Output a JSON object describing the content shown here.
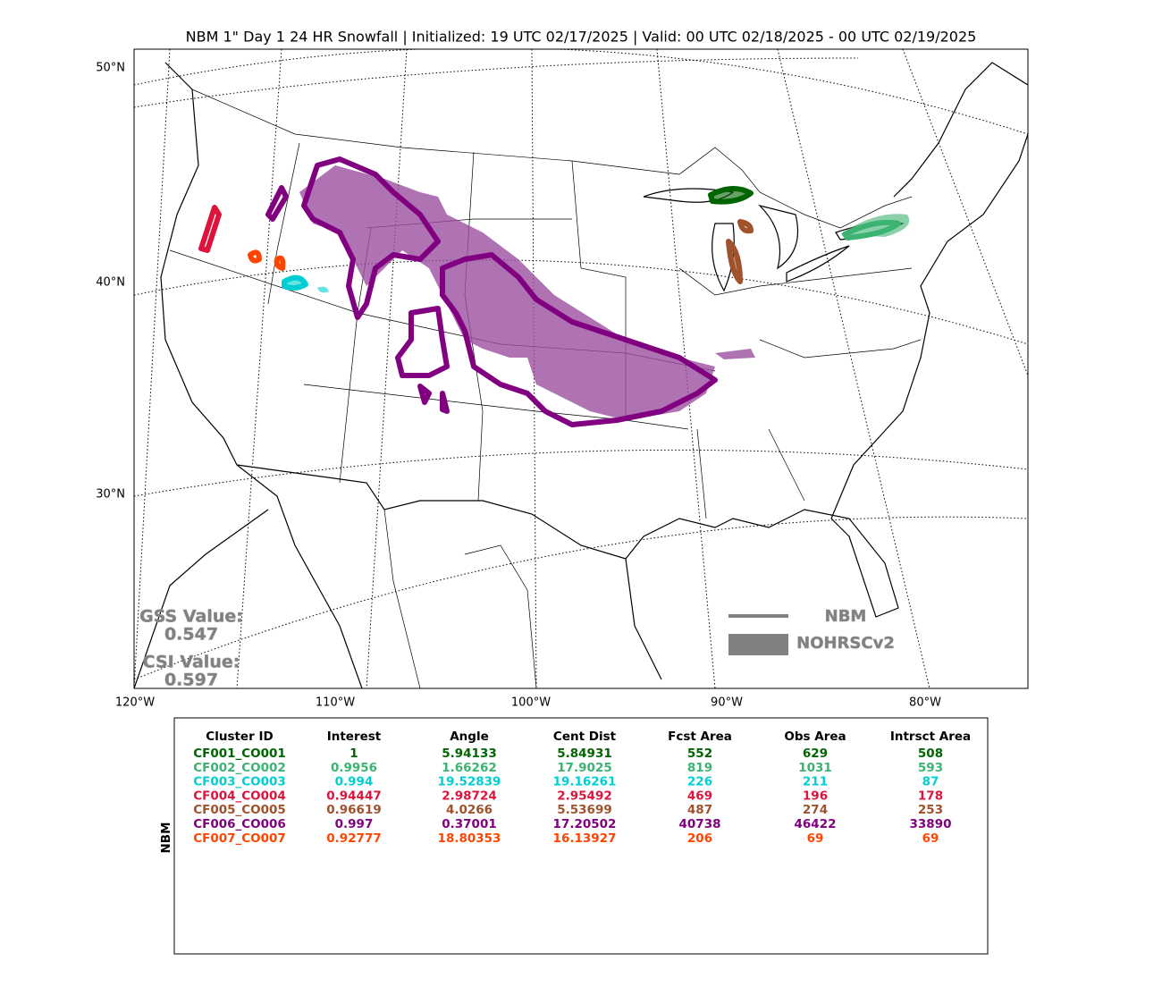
{
  "title": "NBM 1\" Day 1 24 HR Snowfall | Initialized: 19 UTC 02/17/2025 | Valid: 00 UTC 02/18/2025 - 00 UTC 02/19/2025",
  "map": {
    "lat_labels": [
      "50°N",
      "40°N",
      "30°N"
    ],
    "lon_labels": [
      "120°W",
      "110°W",
      "100°W",
      "90°W",
      "80°W"
    ],
    "scores": {
      "gss_label": "GSS Value:",
      "gss_value": "0.547",
      "csi_label": "CSI Value:",
      "csi_value": "0.597"
    },
    "legend": {
      "line": "NBM",
      "fill": "NOHRSCv2"
    }
  },
  "table": {
    "side_label": "NBM",
    "columns": [
      "Cluster ID",
      "Interest",
      "Angle",
      "Cent Dist",
      "Fcst Area",
      "Obs Area",
      "Intrsct Area"
    ],
    "rows": [
      {
        "color": "#006400",
        "cells": [
          "CF001_CO001",
          "1",
          "5.94133",
          "5.84931",
          "552",
          "629",
          "508"
        ]
      },
      {
        "color": "#3cb371",
        "cells": [
          "CF002_CO002",
          "0.9956",
          "1.66262",
          "17.9025",
          "819",
          "1031",
          "593"
        ]
      },
      {
        "color": "#00ced1",
        "cells": [
          "CF003_CO003",
          "0.994",
          "19.52839",
          "19.16261",
          "226",
          "211",
          "87"
        ]
      },
      {
        "color": "#dc143c",
        "cells": [
          "CF004_CO004",
          "0.94447",
          "2.98724",
          "2.95492",
          "469",
          "196",
          "178"
        ]
      },
      {
        "color": "#a0522d",
        "cells": [
          "CF005_CO005",
          "0.96619",
          "4.0266",
          "5.53699",
          "487",
          "274",
          "253"
        ]
      },
      {
        "color": "#800080",
        "cells": [
          "CF006_CO006",
          "0.997",
          "0.37001",
          "17.20502",
          "40738",
          "46422",
          "33890"
        ]
      },
      {
        "color": "#ff4500",
        "cells": [
          "CF007_CO007",
          "0.92777",
          "18.80353",
          "16.13927",
          "206",
          "69",
          "69"
        ]
      }
    ]
  }
}
